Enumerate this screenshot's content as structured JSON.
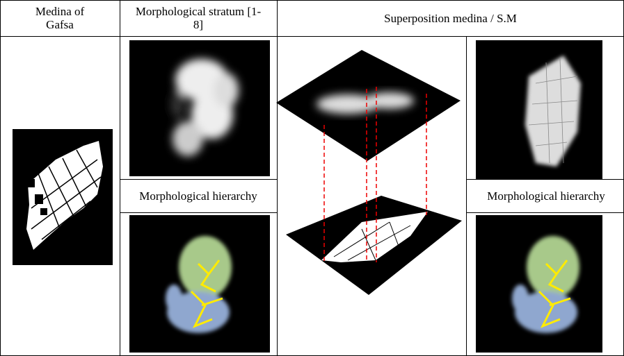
{
  "table": {
    "header": [
      "Medina of Gafsa",
      "Morphological stratum [1-8]",
      "Superposition medina / S.M"
    ],
    "subheaders": [
      "Morphological hierarchy",
      "Morphological hierarchy"
    ]
  }
}
